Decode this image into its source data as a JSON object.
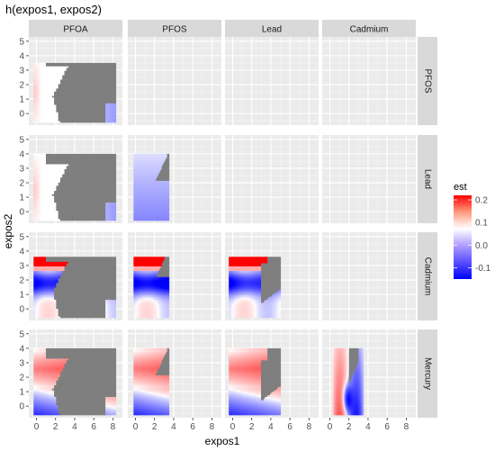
{
  "chart_data": {
    "type": "heatmap",
    "title": "h(expos1, expos2)",
    "xlabel": "expos1",
    "ylabel": "expos2",
    "columns": [
      "PFOA",
      "PFOS",
      "Lead",
      "Cadmium"
    ],
    "rows": [
      "PFOS",
      "Lead",
      "Cadmium",
      "Mercury"
    ],
    "x_ticks": [
      "0",
      "2",
      "4",
      "6",
      "8"
    ],
    "y_ticks": [
      "0",
      "1",
      "2",
      "3",
      "4",
      "5"
    ],
    "xlim": [
      -0.8,
      9.0
    ],
    "ylim": [
      -0.8,
      5.3
    ],
    "legend": {
      "title": "est",
      "ticks": [
        "0.2",
        "0.1",
        "0.0",
        "-0.1"
      ],
      "tick_values": [
        0.2,
        0.1,
        0.0,
        -0.1
      ],
      "range": [
        -0.15,
        0.22
      ],
      "placement": "right"
    },
    "colors": {
      "low": "#0000ff",
      "mid": "#ffffff",
      "high": "#ff0000",
      "missing": "#7f7f7f",
      "panel_bg": "#ebebeb",
      "strip_bg": "#d9d9d9"
    },
    "panels": [
      {
        "row": "PFOS",
        "col": "PFOA",
        "x_range": [
          -0.3,
          8.3
        ],
        "y_range": [
          -0.6,
          3.5
        ]
      },
      {
        "row": "Lead",
        "col": "PFOA",
        "x_range": [
          -0.3,
          8.3
        ],
        "y_range": [
          -0.6,
          4.0
        ]
      },
      {
        "row": "Lead",
        "col": "PFOS",
        "x_range": [
          -0.2,
          3.5
        ],
        "y_range": [
          -0.6,
          4.0
        ]
      },
      {
        "row": "Cadmium",
        "col": "PFOA",
        "x_range": [
          -0.3,
          8.3
        ],
        "y_range": [
          -0.6,
          3.6
        ]
      },
      {
        "row": "Cadmium",
        "col": "PFOS",
        "x_range": [
          -0.2,
          3.5
        ],
        "y_range": [
          -0.6,
          3.6
        ]
      },
      {
        "row": "Cadmium",
        "col": "Lead",
        "x_range": [
          -0.4,
          5.0
        ],
        "y_range": [
          -0.6,
          3.6
        ]
      },
      {
        "row": "Mercury",
        "col": "PFOA",
        "x_range": [
          -0.3,
          8.3
        ],
        "y_range": [
          -0.6,
          4.0
        ]
      },
      {
        "row": "Mercury",
        "col": "PFOS",
        "x_range": [
          -0.2,
          3.5
        ],
        "y_range": [
          -0.6,
          4.0
        ]
      },
      {
        "row": "Mercury",
        "col": "Lead",
        "x_range": [
          -0.4,
          5.0
        ],
        "y_range": [
          -0.6,
          4.0
        ]
      },
      {
        "row": "Mercury",
        "col": "Cadmium",
        "x_range": [
          0.2,
          3.5
        ],
        "y_range": [
          -0.6,
          4.0
        ]
      }
    ]
  }
}
